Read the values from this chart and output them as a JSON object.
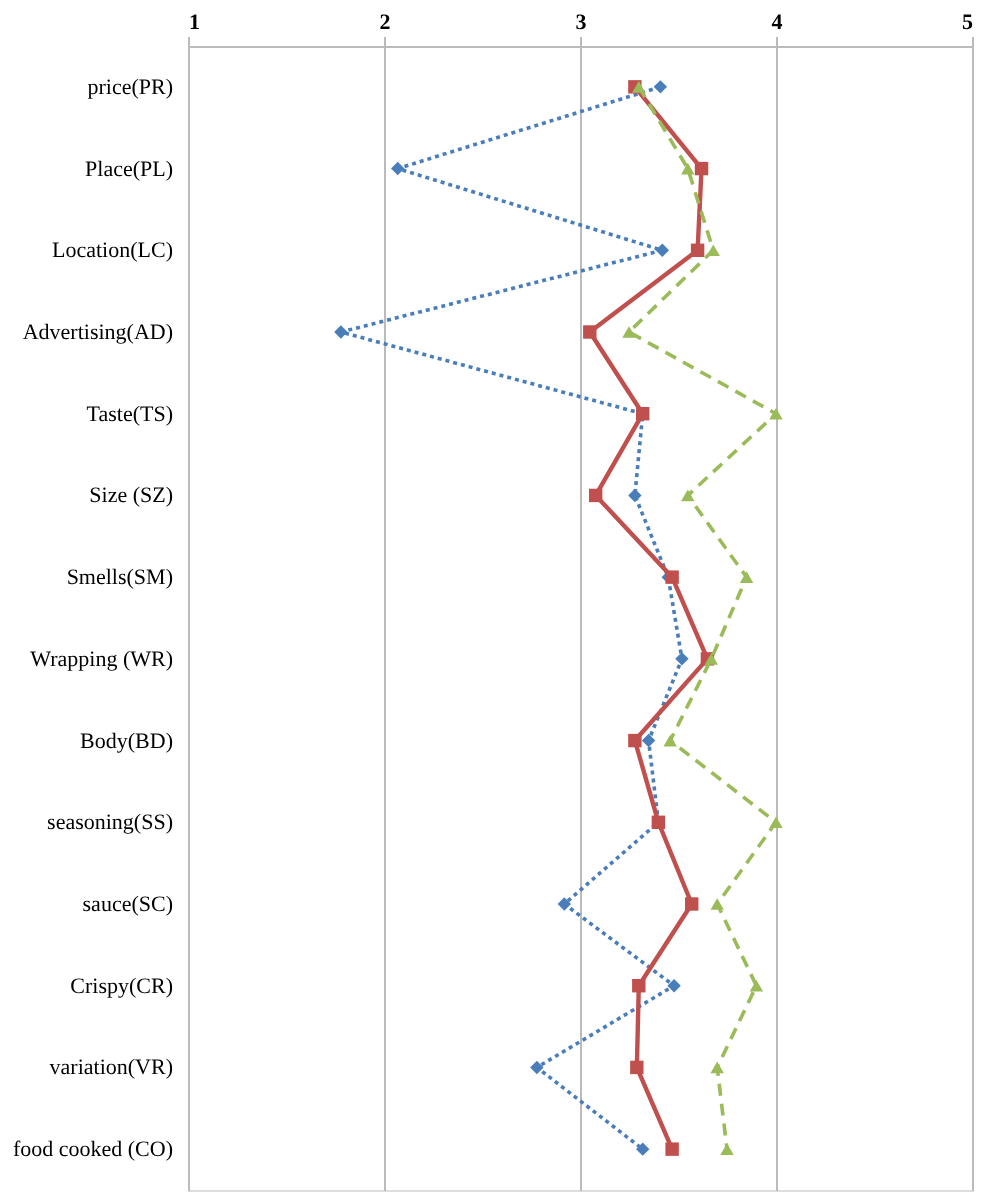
{
  "chart_data": {
    "type": "line",
    "orientation": "horizontal",
    "categories": [
      "price(PR)",
      "Place(PL)",
      "Location(LC)",
      "Advertising(AD)",
      "Taste(TS)",
      "Size (SZ)",
      "Smells(SM)",
      "Wrapping (WR)",
      "Body(BD)",
      "seasoning(SS)",
      "sauce(SC)",
      "Crispy(CR)",
      "variation(VR)",
      "food cooked (CO)"
    ],
    "series": [
      {
        "color": "#4a7ebb",
        "marker": "diamond",
        "line_style": "dotted",
        "values": [
          3.41,
          2.07,
          3.42,
          1.78,
          3.32,
          3.28,
          3.45,
          3.52,
          3.35,
          3.4,
          2.92,
          3.48,
          2.78,
          3.32
        ]
      },
      {
        "color": "#c0504d",
        "marker": "square",
        "line_style": "solid",
        "values": [
          3.28,
          3.62,
          3.6,
          3.05,
          3.32,
          3.08,
          3.47,
          3.65,
          3.28,
          3.4,
          3.57,
          3.3,
          3.29,
          3.47
        ]
      },
      {
        "color": "#9bbb59",
        "marker": "triangle",
        "line_style": "dashed",
        "values": [
          3.3,
          3.55,
          3.68,
          3.25,
          4.0,
          3.55,
          3.85,
          3.67,
          3.46,
          4.0,
          3.7,
          3.9,
          3.7,
          3.75
        ]
      }
    ],
    "xlim": [
      1,
      5
    ],
    "xticks": [
      1,
      2,
      3,
      4,
      5
    ],
    "grid": "x"
  }
}
